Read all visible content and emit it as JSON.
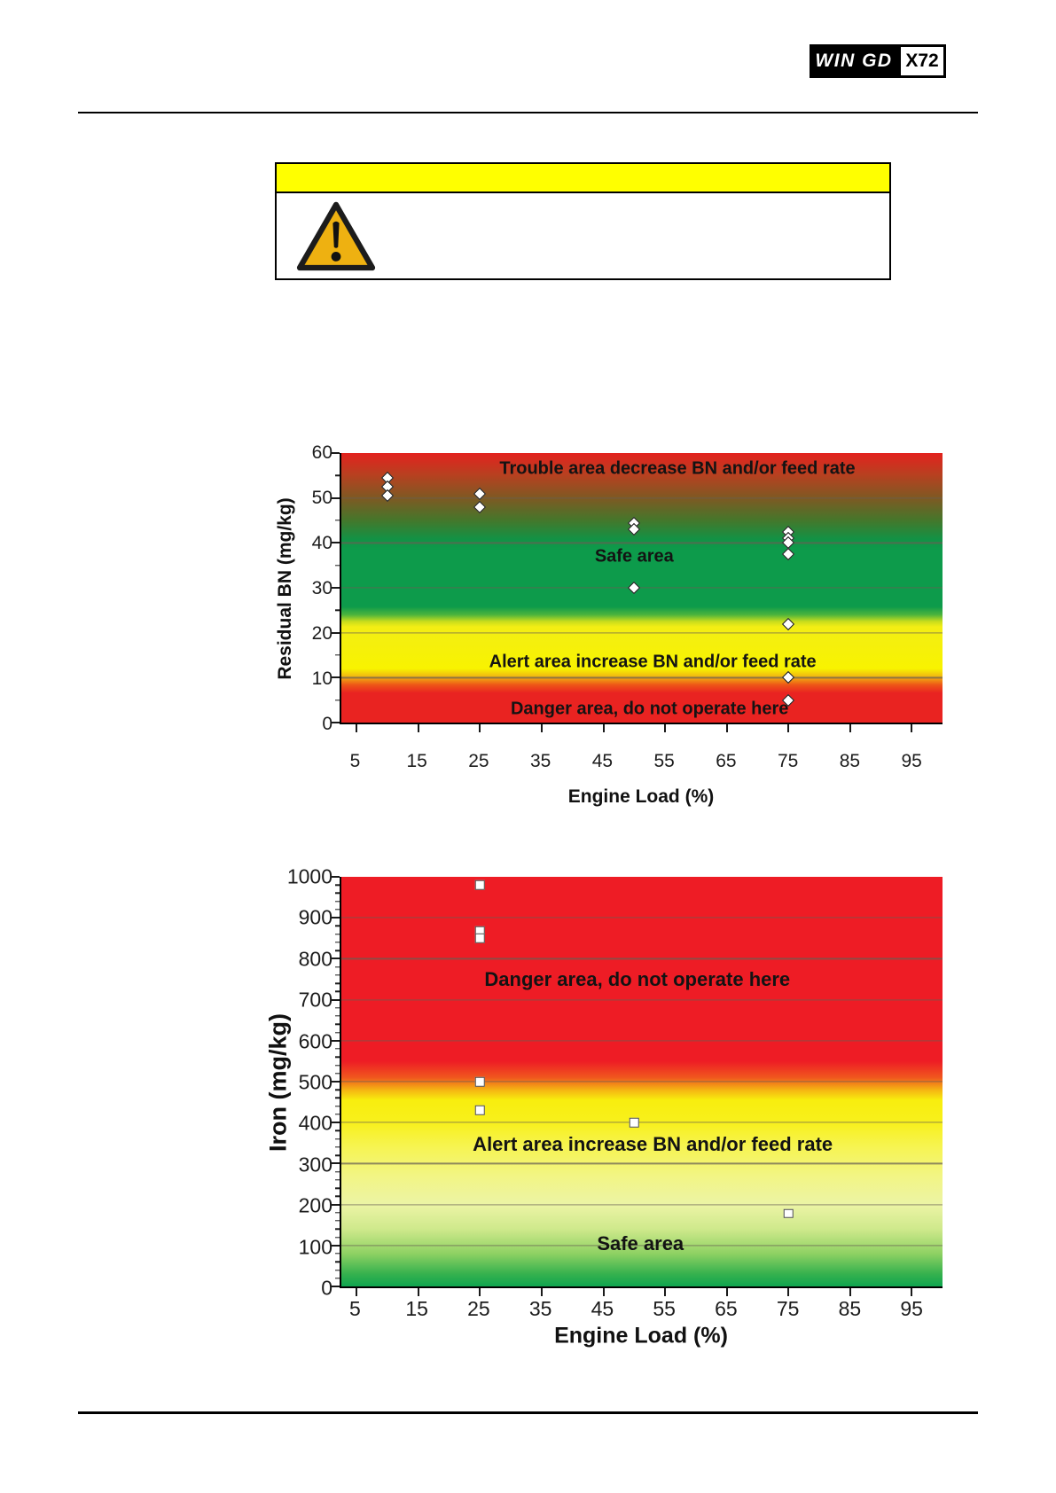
{
  "header": {
    "brand": "WIN GD",
    "model": "X72"
  },
  "warning": {
    "icon": "warning-triangle-icon",
    "banner_color": "#ffff00"
  },
  "chart_data": [
    {
      "type": "scatter",
      "marker": "diamond",
      "title": "",
      "xlabel": "Engine Load (%)",
      "ylabel": "Residual BN (mg/kg)",
      "xlim": [
        2.5,
        100
      ],
      "ylim": [
        0,
        60
      ],
      "xticks": [
        5,
        15,
        25,
        35,
        45,
        55,
        65,
        75,
        85,
        95
      ],
      "yticks": [
        0,
        10,
        20,
        30,
        40,
        50,
        60
      ],
      "y_minor_step": 5,
      "grid": true,
      "legend": "none",
      "points": [
        {
          "x": 10,
          "y": 54.5
        },
        {
          "x": 10,
          "y": 52.5
        },
        {
          "x": 10,
          "y": 50.5
        },
        {
          "x": 25,
          "y": 51
        },
        {
          "x": 25,
          "y": 48
        },
        {
          "x": 50,
          "y": 44.5
        },
        {
          "x": 50,
          "y": 43
        },
        {
          "x": 50,
          "y": 30
        },
        {
          "x": 75,
          "y": 42.5
        },
        {
          "x": 75,
          "y": 41
        },
        {
          "x": 75,
          "y": 40
        },
        {
          "x": 75,
          "y": 37.5
        },
        {
          "x": 75,
          "y": 22
        },
        {
          "x": 75,
          "y": 10
        },
        {
          "x": 75,
          "y": 5
        }
      ],
      "zone_labels": [
        {
          "text": "Trouble area decrease BN and/or feed rate",
          "x": 57,
          "y": 56.5
        },
        {
          "text": "Safe area",
          "x": 50,
          "y": 37
        },
        {
          "text": "Alert area increase BN and/or feed rate",
          "x": 53,
          "y": 13.5
        },
        {
          "text": "Danger area, do not operate here",
          "x": 52.5,
          "y": 3
        }
      ],
      "background_gradient": [
        {
          "color": "#e3221e",
          "at": 0
        },
        {
          "color": "#b84020",
          "at": 8
        },
        {
          "color": "#7c5a23",
          "at": 17
        },
        {
          "color": "#44772b",
          "at": 25
        },
        {
          "color": "#129245",
          "at": 32
        },
        {
          "color": "#0d9b4b",
          "at": 36
        },
        {
          "color": "#0d9b4b",
          "at": 57
        },
        {
          "color": "#4cb43c",
          "at": 60
        },
        {
          "color": "#c8dd1d",
          "at": 62.5
        },
        {
          "color": "#f3ee14",
          "at": 64.5
        },
        {
          "color": "#f8f300",
          "at": 80
        },
        {
          "color": "#f1b511",
          "at": 83
        },
        {
          "color": "#ee5617",
          "at": 86
        },
        {
          "color": "#e92321",
          "at": 89
        },
        {
          "color": "#e92321",
          "at": 100
        }
      ]
    },
    {
      "type": "scatter",
      "marker": "square",
      "title": "",
      "xlabel": "Engine Load (%)",
      "ylabel": "Iron (mg/kg)",
      "xlim": [
        2.5,
        100
      ],
      "ylim": [
        0,
        1000
      ],
      "xticks": [
        5,
        15,
        25,
        35,
        45,
        55,
        65,
        75,
        85,
        95
      ],
      "yticks": [
        0,
        100,
        200,
        300,
        400,
        500,
        600,
        700,
        800,
        900,
        1000
      ],
      "y_minor_step": 20,
      "grid": true,
      "legend": "none",
      "points": [
        {
          "x": 25,
          "y": 980
        },
        {
          "x": 25,
          "y": 868
        },
        {
          "x": 25,
          "y": 850
        },
        {
          "x": 25,
          "y": 500
        },
        {
          "x": 25,
          "y": 430
        },
        {
          "x": 50,
          "y": 400
        },
        {
          "x": 75,
          "y": 178
        }
      ],
      "zone_labels": [
        {
          "text": "Danger area, do not operate here",
          "x": 50.5,
          "y": 750
        },
        {
          "text": "Alert area increase BN and/or feed rate",
          "x": 53,
          "y": 347
        },
        {
          "text": "Safe area",
          "x": 51,
          "y": 104
        }
      ],
      "background_gradient": [
        {
          "color": "#ee1c25",
          "at": 0
        },
        {
          "color": "#ee1c25",
          "at": 45
        },
        {
          "color": "#f0571e",
          "at": 49
        },
        {
          "color": "#f5b313",
          "at": 52
        },
        {
          "color": "#f8ee0e",
          "at": 54.5
        },
        {
          "color": "#f8f01c",
          "at": 60
        },
        {
          "color": "#f6f452",
          "at": 66
        },
        {
          "color": "#f2f584",
          "at": 73
        },
        {
          "color": "#ecf4a5",
          "at": 80
        },
        {
          "color": "#cfe98c",
          "at": 86
        },
        {
          "color": "#8ed163",
          "at": 92
        },
        {
          "color": "#35b14e",
          "at": 97
        },
        {
          "color": "#0fa54f",
          "at": 100
        }
      ]
    }
  ]
}
